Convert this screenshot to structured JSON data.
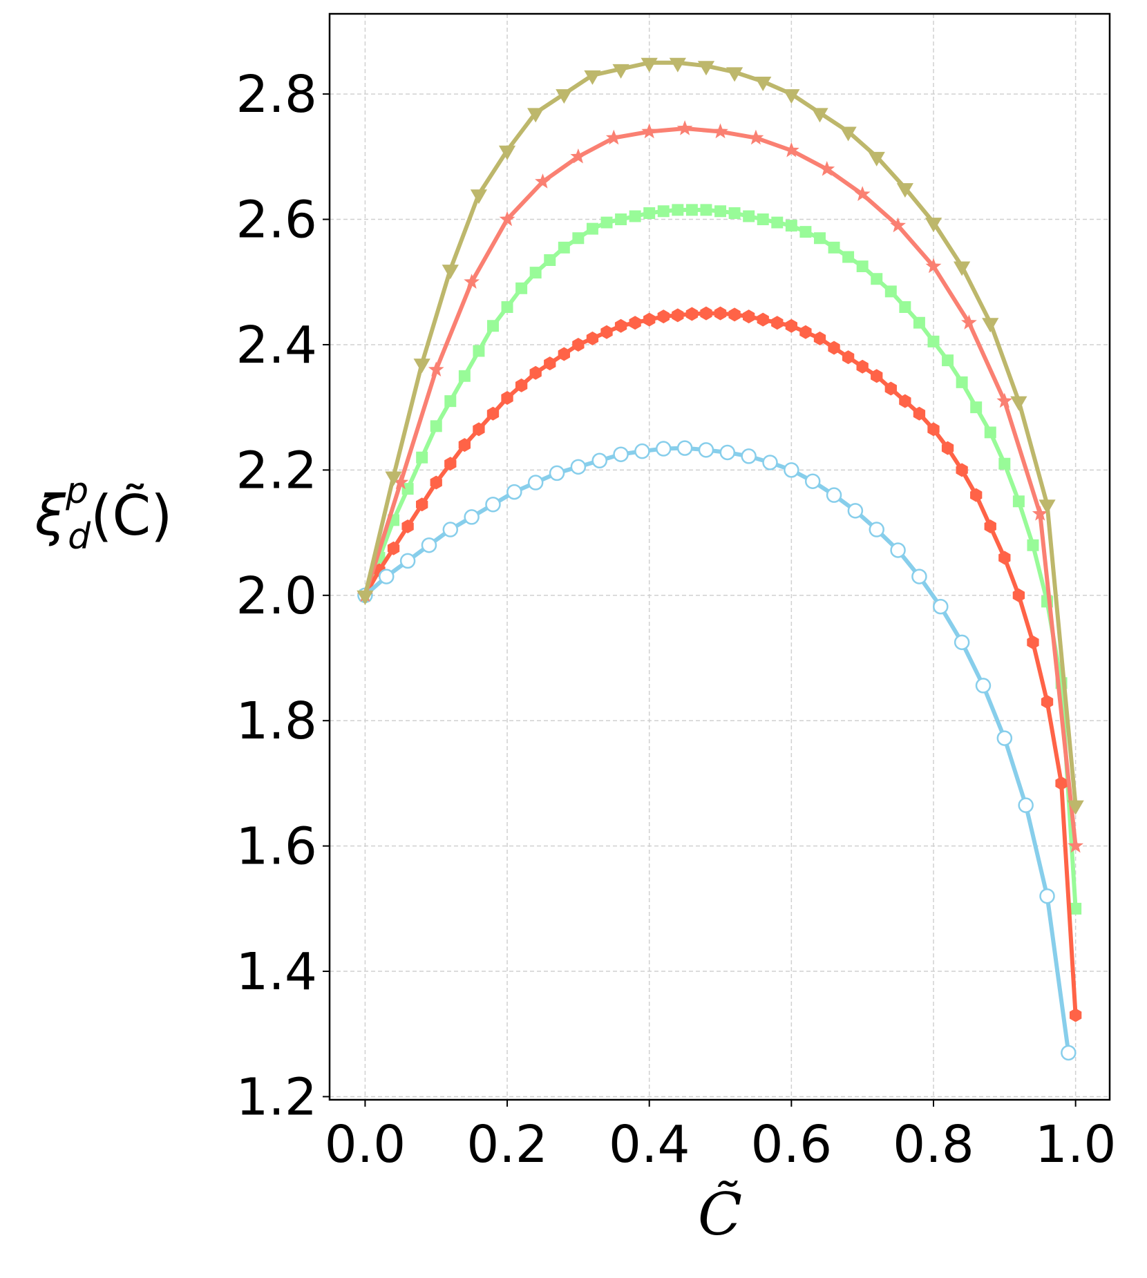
{
  "chart_data": {
    "type": "line",
    "xlabel": "C̃",
    "ylabel": {
      "base": "ξ",
      "sub": "d",
      "sup": "p",
      "rest": "(C̃)"
    },
    "xlim": [
      -0.05,
      1.048
    ],
    "ylim": [
      1.195,
      2.928
    ],
    "xticks": [
      {
        "value": 0,
        "label": "0.0"
      },
      0.2,
      0.4,
      0.6,
      0.8,
      {
        "value": 1,
        "label": "1.0"
      }
    ],
    "yticks": [
      1.2,
      1.4,
      1.6,
      1.8,
      {
        "value": 2,
        "label": "2.0"
      },
      2.2,
      2.4,
      2.6,
      2.8
    ],
    "grid": true,
    "series": [
      {
        "color": "#98fb98",
        "marker": "square",
        "x": [
          0,
          0.02,
          0.04,
          0.06,
          0.08,
          0.1,
          0.12,
          0.14,
          0.16,
          0.18,
          0.2,
          0.22,
          0.24,
          0.26,
          0.28,
          0.3,
          0.32,
          0.34,
          0.36,
          0.38,
          0.4,
          0.42,
          0.44,
          0.46,
          0.48,
          0.5,
          0.52,
          0.54,
          0.56,
          0.58,
          0.6,
          0.62,
          0.64,
          0.66,
          0.68,
          0.7,
          0.72,
          0.74,
          0.76,
          0.78,
          0.8,
          0.82,
          0.84,
          0.86,
          0.88,
          0.9,
          0.92,
          0.94,
          0.96,
          0.98,
          1
        ],
        "values": [
          2.0,
          2.06,
          2.12,
          2.17,
          2.22,
          2.27,
          2.31,
          2.35,
          2.39,
          2.43,
          2.46,
          2.49,
          2.515,
          2.535,
          2.555,
          2.57,
          2.585,
          2.595,
          2.6,
          2.605,
          2.61,
          2.613,
          2.615,
          2.615,
          2.615,
          2.613,
          2.61,
          2.605,
          2.6,
          2.595,
          2.59,
          2.58,
          2.57,
          2.555,
          2.54,
          2.525,
          2.505,
          2.485,
          2.46,
          2.435,
          2.405,
          2.375,
          2.34,
          2.3,
          2.26,
          2.21,
          2.15,
          2.08,
          1.99,
          1.86,
          1.5
        ]
      },
      {
        "color": "#ff6347",
        "marker": "hexagon",
        "x": [
          0,
          0.02,
          0.04,
          0.06,
          0.08,
          0.1,
          0.12,
          0.14,
          0.16,
          0.18,
          0.2,
          0.22,
          0.24,
          0.26,
          0.28,
          0.3,
          0.32,
          0.34,
          0.36,
          0.38,
          0.4,
          0.42,
          0.44,
          0.46,
          0.48,
          0.5,
          0.52,
          0.54,
          0.56,
          0.58,
          0.6,
          0.62,
          0.64,
          0.66,
          0.68,
          0.7,
          0.72,
          0.74,
          0.76,
          0.78,
          0.8,
          0.82,
          0.84,
          0.86,
          0.88,
          0.9,
          0.92,
          0.94,
          0.96,
          0.98,
          1
        ],
        "values": [
          2.0,
          2.04,
          2.075,
          2.11,
          2.145,
          2.18,
          2.21,
          2.24,
          2.265,
          2.29,
          2.315,
          2.335,
          2.355,
          2.37,
          2.385,
          2.4,
          2.41,
          2.42,
          2.43,
          2.435,
          2.44,
          2.445,
          2.447,
          2.449,
          2.45,
          2.45,
          2.448,
          2.445,
          2.44,
          2.435,
          2.43,
          2.42,
          2.41,
          2.395,
          2.38,
          2.365,
          2.35,
          2.33,
          2.31,
          2.29,
          2.265,
          2.235,
          2.2,
          2.16,
          2.11,
          2.06,
          2.0,
          1.925,
          1.83,
          1.7,
          1.33
        ]
      },
      {
        "color": "#87ceeb",
        "marker": "circle-open",
        "x": [
          0,
          0.03,
          0.06,
          0.09,
          0.12,
          0.15,
          0.18,
          0.21,
          0.24,
          0.27,
          0.3,
          0.33,
          0.36,
          0.39,
          0.42,
          0.45,
          0.48,
          0.51,
          0.54,
          0.57,
          0.6,
          0.63,
          0.66,
          0.69,
          0.72,
          0.75,
          0.78,
          0.81,
          0.84,
          0.87,
          0.9,
          0.93,
          0.96,
          0.99
        ],
        "values": [
          2.0,
          2.03,
          2.055,
          2.08,
          2.105,
          2.125,
          2.145,
          2.165,
          2.18,
          2.195,
          2.205,
          2.215,
          2.225,
          2.23,
          2.234,
          2.235,
          2.232,
          2.228,
          2.222,
          2.212,
          2.2,
          2.182,
          2.16,
          2.135,
          2.105,
          2.072,
          2.03,
          1.982,
          1.925,
          1.856,
          1.772,
          1.665,
          1.52,
          1.27
        ]
      },
      {
        "color": "#fa8072",
        "marker": "star",
        "x": [
          0,
          0.05,
          0.1,
          0.15,
          0.2,
          0.25,
          0.3,
          0.35,
          0.4,
          0.45,
          0.5,
          0.55,
          0.6,
          0.65,
          0.7,
          0.75,
          0.8,
          0.85,
          0.9,
          0.95,
          1
        ],
        "values": [
          2.0,
          2.18,
          2.36,
          2.5,
          2.6,
          2.66,
          2.7,
          2.73,
          2.74,
          2.745,
          2.74,
          2.73,
          2.71,
          2.68,
          2.64,
          2.59,
          2.525,
          2.435,
          2.31,
          2.13,
          1.6
        ]
      },
      {
        "color": "#bdb76b",
        "marker": "triangle-down",
        "x": [
          0,
          0.04,
          0.08,
          0.12,
          0.16,
          0.2,
          0.24,
          0.28,
          0.32,
          0.36,
          0.4,
          0.44,
          0.48,
          0.52,
          0.56,
          0.6,
          0.64,
          0.68,
          0.72,
          0.76,
          0.8,
          0.84,
          0.88,
          0.92,
          0.96,
          1
        ],
        "values": [
          2.0,
          2.19,
          2.37,
          2.52,
          2.64,
          2.71,
          2.77,
          2.8,
          2.83,
          2.84,
          2.85,
          2.85,
          2.845,
          2.835,
          2.82,
          2.8,
          2.77,
          2.74,
          2.7,
          2.65,
          2.595,
          2.525,
          2.435,
          2.31,
          2.145,
          1.665
        ]
      }
    ]
  }
}
